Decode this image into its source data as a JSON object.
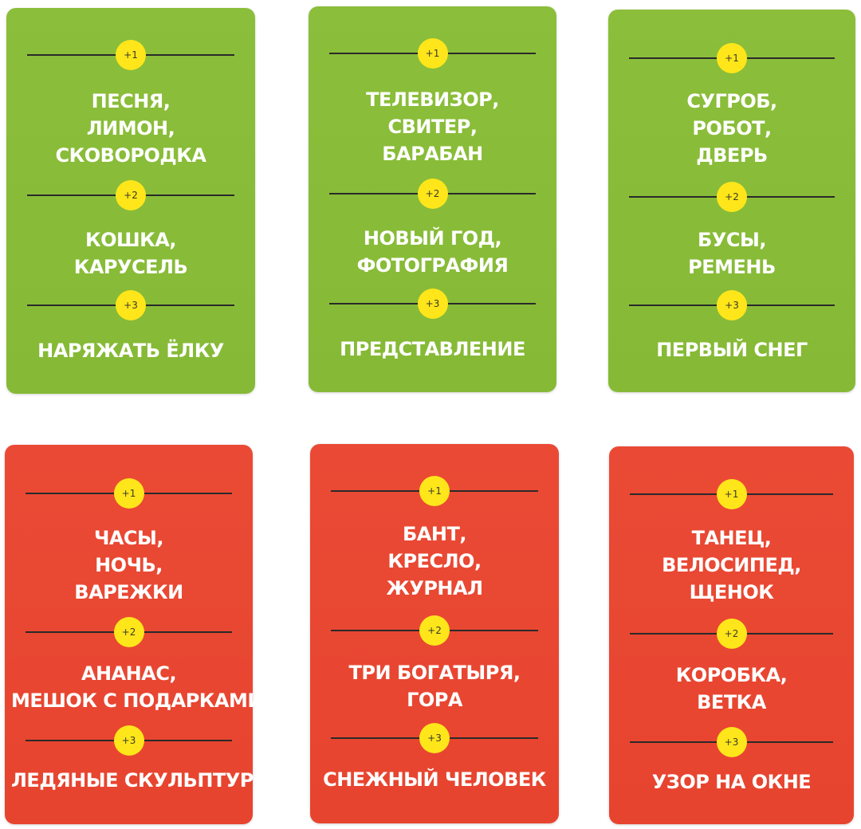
{
  "cards": [
    {
      "badges": [
        "+1",
        "+2",
        "+3"
      ],
      "tier1": [
        "ПЕСНЯ,",
        "ЛИМОН,",
        "СКОВОРОДКА"
      ],
      "tier2": [
        "КОШКА,",
        "КАРУСЕЛЬ"
      ],
      "tier3": [
        "НАРЯЖАТЬ ЁЛКУ"
      ]
    },
    {
      "badges": [
        "+1",
        "+2",
        "+3"
      ],
      "tier1": [
        "ТЕЛЕВИЗОР,",
        "СВИТЕР,",
        "БАРАБАН"
      ],
      "tier2": [
        "НОВЫЙ ГОД,",
        "ФОТОГРАФИЯ"
      ],
      "tier3": [
        "ПРЕДСТАВЛЕНИЕ"
      ]
    },
    {
      "badges": [
        "+1",
        "+2",
        "+3"
      ],
      "tier1": [
        "СУГРОБ,",
        "РОБОТ,",
        "ДВЕРЬ"
      ],
      "tier2": [
        "БУСЫ,",
        "РЕМЕНЬ"
      ],
      "tier3": [
        "ПЕРВЫЙ СНЕГ"
      ]
    },
    {
      "badges": [
        "+1",
        "+2",
        "+3"
      ],
      "tier1": [
        "ЧАСЫ,",
        "НОЧЬ,",
        "ВАРЕЖКИ"
      ],
      "tier2": [
        "АНАНАС,",
        "МЕШОК С ПОДАРКАМИ"
      ],
      "tier3": [
        "ЛЕДЯНЫЕ СКУЛЬПТУРЫ"
      ]
    },
    {
      "badges": [
        "+1",
        "+2",
        "+3"
      ],
      "tier1": [
        "БАНТ,",
        "КРЕСЛО,",
        "ЖУРНАЛ"
      ],
      "tier2": [
        "ТРИ БОГАТЫРЯ,",
        "ГОРА"
      ],
      "tier3": [
        "СНЕЖНЫЙ ЧЕЛОВЕК"
      ]
    },
    {
      "badges": [
        "+1",
        "+2",
        "+3"
      ],
      "tier1": [
        "ТАНЕЦ,",
        "ВЕЛОСИПЕД,",
        "ЩЕНОК"
      ],
      "tier2": [
        "КОРОБКА,",
        "ВЕТКА"
      ],
      "tier3": [
        "УЗОР НА ОКНЕ"
      ]
    }
  ],
  "colors": {
    "green_card": "#8bbe3a",
    "red_card": "#ea4a35",
    "badge": "#ffe61a",
    "text": "#ffffff",
    "divider": "#2a2a2a"
  }
}
